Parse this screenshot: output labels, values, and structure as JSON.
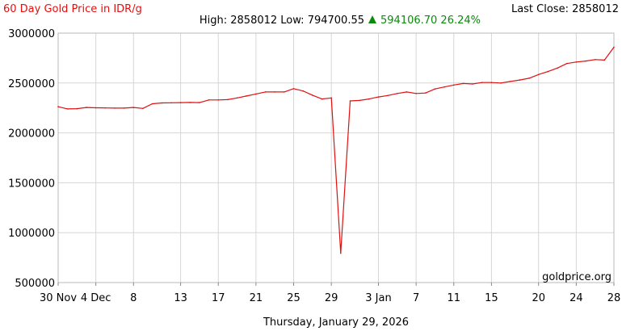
{
  "header": {
    "title": "60 Day Gold Price in IDR/g",
    "last_close_label": "Last Close: 2858012",
    "high_low_label": "High: 2858012 Low: 794700.55",
    "change_icon": "triangle-up-icon",
    "change_label": "594106.70 26.24%"
  },
  "footer": {
    "date_label": "Thursday, January 29, 2026"
  },
  "watermark": "goldprice.org",
  "colors": {
    "title": "#e01010",
    "line": "#e01010",
    "grid": "#d6d6d6",
    "positive": "#0a8a0a"
  },
  "chart_data": {
    "type": "line",
    "title": "60 Day Gold Price in IDR/g",
    "ylim": [
      500000,
      3000000
    ],
    "xlim_days": [
      0,
      59
    ],
    "y_ticks": [
      500000,
      1000000,
      1500000,
      2000000,
      2500000,
      3000000
    ],
    "y_tick_labels": [
      "500000",
      "1000000",
      "1500000",
      "2000000",
      "2500000",
      "3000000"
    ],
    "x_ticks": [
      {
        "label": "30 Nov",
        "day": 0
      },
      {
        "label": "4 Dec",
        "day": 4
      },
      {
        "label": "8",
        "day": 8
      },
      {
        "label": "13",
        "day": 13
      },
      {
        "label": "17",
        "day": 17
      },
      {
        "label": "21",
        "day": 21
      },
      {
        "label": "25",
        "day": 25
      },
      {
        "label": "29",
        "day": 29
      },
      {
        "label": "3 Jan",
        "day": 34
      },
      {
        "label": "7",
        "day": 38
      },
      {
        "label": "11",
        "day": 42
      },
      {
        "label": "15",
        "day": 46
      },
      {
        "label": "20",
        "day": 51
      },
      {
        "label": "24",
        "day": 55
      },
      {
        "label": "28",
        "day": 59
      }
    ],
    "series": [
      {
        "name": "",
        "x": [
          0,
          1,
          2,
          3,
          4,
          5,
          6,
          7,
          8,
          9,
          10,
          11,
          12,
          13,
          14,
          15,
          16,
          17,
          18,
          19,
          20,
          21,
          22,
          23,
          24,
          25,
          26,
          27,
          28,
          29,
          30,
          31,
          32,
          33,
          34,
          35,
          36,
          37,
          38,
          39,
          40,
          41,
          42,
          43,
          44,
          45,
          46,
          47,
          48,
          49,
          50,
          51,
          52,
          53,
          54,
          55,
          56,
          57,
          58,
          59
        ],
        "values": [
          2262000,
          2240000,
          2243000,
          2255000,
          2252000,
          2250000,
          2248000,
          2248000,
          2255000,
          2245000,
          2292000,
          2300000,
          2302000,
          2303000,
          2305000,
          2303000,
          2330000,
          2330000,
          2333000,
          2350000,
          2370000,
          2390000,
          2410000,
          2410000,
          2410000,
          2443000,
          2420000,
          2378000,
          2340000,
          2350000,
          794700.55,
          2320000,
          2325000,
          2340000,
          2360000,
          2375000,
          2395000,
          2410000,
          2395000,
          2400000,
          2440000,
          2460000,
          2480000,
          2495000,
          2490000,
          2505000,
          2505000,
          2500000,
          2515000,
          2530000,
          2548000,
          2585000,
          2615000,
          2650000,
          2695000,
          2710000,
          2720000,
          2735000,
          2730000,
          2858012
        ]
      }
    ],
    "grid": true,
    "legend": "none"
  }
}
